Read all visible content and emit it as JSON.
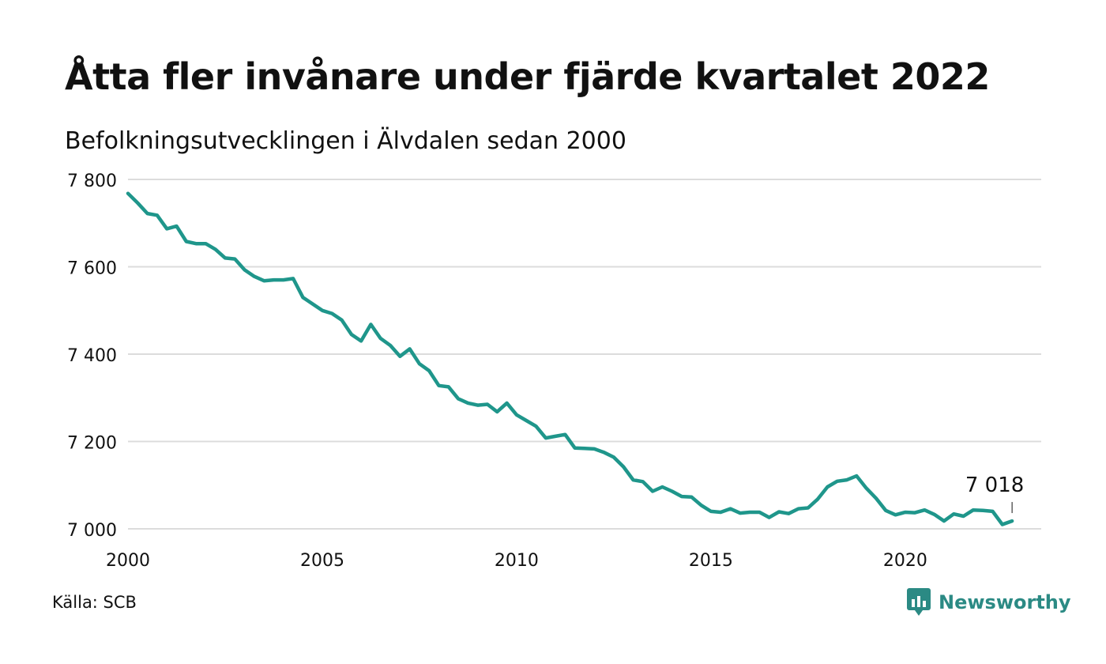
{
  "title": "Åtta fler invånare under fjärde kvartalet 2022",
  "subtitle": "Befolkningsutvecklingen i Älvdalen sedan 2000",
  "source": "Källa: SCB",
  "brand": {
    "name": "Newsworthy",
    "icon": "newsworthy-logo-icon",
    "color": "#2b8a84"
  },
  "chart_data": {
    "type": "line",
    "line_color": "#1f968b",
    "grid": true,
    "ylim": [
      7000,
      7800
    ],
    "xlim": [
      2000,
      2023.5
    ],
    "y_ticks": [
      {
        "value": 7000,
        "label": "7 000"
      },
      {
        "value": 7200,
        "label": "7 200"
      },
      {
        "value": 7400,
        "label": "7 400"
      },
      {
        "value": 7600,
        "label": "7 600"
      },
      {
        "value": 7800,
        "label": "7 800"
      }
    ],
    "x_ticks": [
      {
        "value": 2000,
        "label": "2000"
      },
      {
        "value": 2005,
        "label": "2005"
      },
      {
        "value": 2010,
        "label": "2010"
      },
      {
        "value": 2015,
        "label": "2015"
      },
      {
        "value": 2020,
        "label": "2020"
      }
    ],
    "last_label": "7 018",
    "series": [
      {
        "x": [
          "2000 Q1",
          "2000 Q2",
          "2000 Q3",
          "2000 Q4",
          "2001 Q1",
          "2001 Q2",
          "2001 Q3",
          "2001 Q4",
          "2002 Q1",
          "2002 Q2",
          "2002 Q3",
          "2002 Q4",
          "2003 Q1",
          "2003 Q2",
          "2003 Q3",
          "2003 Q4",
          "2004 Q1",
          "2004 Q2",
          "2004 Q3",
          "2004 Q4",
          "2005 Q1",
          "2005 Q2",
          "2005 Q3",
          "2005 Q4",
          "2006 Q1",
          "2006 Q2",
          "2006 Q3",
          "2006 Q4",
          "2007 Q1",
          "2007 Q2",
          "2007 Q3",
          "2007 Q4",
          "2008 Q1",
          "2008 Q2",
          "2008 Q3",
          "2008 Q4",
          "2009 Q1",
          "2009 Q2",
          "2009 Q3",
          "2009 Q4",
          "2010 Q1",
          "2010 Q2",
          "2010 Q3",
          "2010 Q4",
          "2011 Q1",
          "2011 Q2",
          "2011 Q3",
          "2011 Q4",
          "2012 Q1",
          "2012 Q2",
          "2012 Q3",
          "2012 Q4",
          "2013 Q1",
          "2013 Q2",
          "2013 Q3",
          "2013 Q4",
          "2014 Q1",
          "2014 Q2",
          "2014 Q3",
          "2014 Q4",
          "2015 Q1",
          "2015 Q2",
          "2015 Q3",
          "2015 Q4",
          "2016 Q1",
          "2016 Q2",
          "2016 Q3",
          "2016 Q4",
          "2017 Q1",
          "2017 Q2",
          "2017 Q3",
          "2017 Q4",
          "2018 Q1",
          "2018 Q2",
          "2018 Q3",
          "2018 Q4",
          "2019 Q1",
          "2019 Q2",
          "2019 Q3",
          "2019 Q4",
          "2020 Q1",
          "2020 Q2",
          "2020 Q3",
          "2020 Q4",
          "2021 Q1",
          "2021 Q2",
          "2021 Q3",
          "2021 Q4",
          "2022 Q1",
          "2022 Q2",
          "2022 Q3",
          "2022 Q4"
        ],
        "values": [
          7768,
          7746,
          7722,
          7718,
          7687,
          7693,
          7658,
          7653,
          7653,
          7640,
          7620,
          7618,
          7593,
          7578,
          7568,
          7570,
          7570,
          7573,
          7530,
          7515,
          7500,
          7493,
          7478,
          7445,
          7430,
          7468,
          7436,
          7420,
          7395,
          7412,
          7378,
          7362,
          7328,
          7325,
          7298,
          7288,
          7283,
          7285,
          7268,
          7288,
          7261,
          7248,
          7235,
          7208,
          7212,
          7216,
          7185,
          7184,
          7183,
          7175,
          7164,
          7142,
          7112,
          7108,
          7086,
          7096,
          7086,
          7074,
          7073,
          7054,
          7040,
          7038,
          7046,
          7036,
          7038,
          7038,
          7026,
          7039,
          7035,
          7046,
          7048,
          7068,
          7096,
          7109,
          7112,
          7121,
          7093,
          7070,
          7042,
          7032,
          7038,
          7037,
          7043,
          7033,
          7018,
          7034,
          7029,
          7043,
          7042,
          7040,
          7010,
          7018
        ]
      }
    ]
  }
}
